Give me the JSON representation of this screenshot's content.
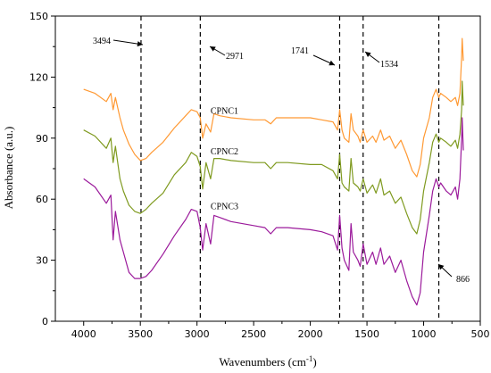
{
  "chart_data": {
    "type": "line",
    "title": "",
    "xlabel": "Wavenumbers (cm",
    "xlabel_sup": "-1",
    "xlabel_close": ")",
    "ylabel": "Absorbance (a.u.)",
    "xlim": [
      4250,
      500
    ],
    "ylim": [
      0,
      150
    ],
    "x_ticks": [
      4000,
      3500,
      3000,
      2500,
      2000,
      1500,
      1000,
      500
    ],
    "y_ticks": [
      0,
      30,
      60,
      90,
      120,
      150
    ],
    "grid": false,
    "legend": "none",
    "reference_lines": [
      3494,
      2971,
      1741,
      1534,
      866
    ],
    "annotations": [
      {
        "text": "3494",
        "x": 3494
      },
      {
        "text": "2971",
        "x": 2971
      },
      {
        "text": "1741",
        "x": 1741
      },
      {
        "text": "1534",
        "x": 1534
      },
      {
        "text": "866",
        "x": 866
      }
    ],
    "series": [
      {
        "name": "CPNC1",
        "color": "#ff9933",
        "label_at": [
          2880,
          102
        ],
        "points": [
          [
            4000,
            114
          ],
          [
            3900,
            112
          ],
          [
            3800,
            108
          ],
          [
            3760,
            112
          ],
          [
            3740,
            104
          ],
          [
            3720,
            110
          ],
          [
            3680,
            100
          ],
          [
            3650,
            94
          ],
          [
            3600,
            87
          ],
          [
            3550,
            82
          ],
          [
            3500,
            79
          ],
          [
            3450,
            80
          ],
          [
            3400,
            83
          ],
          [
            3300,
            88
          ],
          [
            3200,
            95
          ],
          [
            3100,
            101
          ],
          [
            3050,
            104
          ],
          [
            3000,
            103
          ],
          [
            2971,
            100
          ],
          [
            2950,
            90
          ],
          [
            2920,
            97
          ],
          [
            2880,
            93
          ],
          [
            2850,
            102
          ],
          [
            2800,
            101
          ],
          [
            2700,
            100
          ],
          [
            2500,
            99
          ],
          [
            2400,
            99
          ],
          [
            2350,
            97
          ],
          [
            2300,
            100
          ],
          [
            2200,
            100
          ],
          [
            2000,
            100
          ],
          [
            1900,
            99
          ],
          [
            1800,
            98
          ],
          [
            1760,
            94
          ],
          [
            1741,
            104
          ],
          [
            1720,
            94
          ],
          [
            1700,
            90
          ],
          [
            1660,
            88
          ],
          [
            1641,
            102
          ],
          [
            1620,
            94
          ],
          [
            1580,
            91
          ],
          [
            1560,
            88
          ],
          [
            1534,
            94
          ],
          [
            1500,
            88
          ],
          [
            1450,
            91
          ],
          [
            1420,
            88
          ],
          [
            1380,
            94
          ],
          [
            1350,
            89
          ],
          [
            1300,
            91
          ],
          [
            1250,
            85
          ],
          [
            1200,
            89
          ],
          [
            1150,
            82
          ],
          [
            1100,
            74
          ],
          [
            1060,
            71
          ],
          [
            1030,
            77
          ],
          [
            1000,
            90
          ],
          [
            950,
            100
          ],
          [
            920,
            110
          ],
          [
            890,
            114
          ],
          [
            866,
            110
          ],
          [
            850,
            112
          ],
          [
            800,
            110
          ],
          [
            760,
            108
          ],
          [
            720,
            110
          ],
          [
            700,
            106
          ],
          [
            680,
            112
          ],
          [
            665,
            130
          ],
          [
            660,
            139
          ],
          [
            650,
            128
          ]
        ]
      },
      {
        "name": "CPNC2",
        "color": "#7f9a1f",
        "label_at": [
          2880,
          82
        ],
        "points": [
          [
            4000,
            94
          ],
          [
            3900,
            91
          ],
          [
            3800,
            85
          ],
          [
            3760,
            90
          ],
          [
            3740,
            78
          ],
          [
            3720,
            86
          ],
          [
            3680,
            70
          ],
          [
            3650,
            64
          ],
          [
            3600,
            57
          ],
          [
            3550,
            54
          ],
          [
            3500,
            53
          ],
          [
            3450,
            55
          ],
          [
            3400,
            58
          ],
          [
            3300,
            63
          ],
          [
            3200,
            72
          ],
          [
            3100,
            78
          ],
          [
            3050,
            83
          ],
          [
            3000,
            81
          ],
          [
            2971,
            76
          ],
          [
            2950,
            65
          ],
          [
            2920,
            78
          ],
          [
            2880,
            70
          ],
          [
            2850,
            80
          ],
          [
            2800,
            80
          ],
          [
            2700,
            79
          ],
          [
            2500,
            78
          ],
          [
            2400,
            78
          ],
          [
            2350,
            75
          ],
          [
            2300,
            78
          ],
          [
            2200,
            78
          ],
          [
            2000,
            77
          ],
          [
            1900,
            77
          ],
          [
            1800,
            74
          ],
          [
            1760,
            70
          ],
          [
            1741,
            82
          ],
          [
            1720,
            68
          ],
          [
            1700,
            66
          ],
          [
            1660,
            64
          ],
          [
            1641,
            80
          ],
          [
            1620,
            68
          ],
          [
            1580,
            66
          ],
          [
            1560,
            64
          ],
          [
            1534,
            70
          ],
          [
            1500,
            63
          ],
          [
            1450,
            67
          ],
          [
            1420,
            63
          ],
          [
            1380,
            70
          ],
          [
            1350,
            62
          ],
          [
            1300,
            64
          ],
          [
            1250,
            58
          ],
          [
            1200,
            61
          ],
          [
            1150,
            53
          ],
          [
            1100,
            46
          ],
          [
            1060,
            43
          ],
          [
            1030,
            50
          ],
          [
            1000,
            64
          ],
          [
            950,
            78
          ],
          [
            920,
            88
          ],
          [
            890,
            92
          ],
          [
            866,
            88
          ],
          [
            850,
            90
          ],
          [
            800,
            88
          ],
          [
            760,
            86
          ],
          [
            720,
            89
          ],
          [
            700,
            85
          ],
          [
            680,
            92
          ],
          [
            665,
            104
          ],
          [
            660,
            118
          ],
          [
            650,
            106
          ]
        ]
      },
      {
        "name": "CPNC3",
        "color": "#9b1a9b",
        "label_at": [
          2880,
          55
        ],
        "points": [
          [
            4000,
            70
          ],
          [
            3900,
            66
          ],
          [
            3800,
            58
          ],
          [
            3760,
            62
          ],
          [
            3740,
            40
          ],
          [
            3720,
            54
          ],
          [
            3680,
            40
          ],
          [
            3650,
            34
          ],
          [
            3600,
            24
          ],
          [
            3550,
            21
          ],
          [
            3500,
            21
          ],
          [
            3450,
            22
          ],
          [
            3400,
            25
          ],
          [
            3300,
            33
          ],
          [
            3200,
            42
          ],
          [
            3100,
            50
          ],
          [
            3050,
            55
          ],
          [
            3000,
            54
          ],
          [
            2971,
            46
          ],
          [
            2950,
            35
          ],
          [
            2920,
            48
          ],
          [
            2880,
            38
          ],
          [
            2850,
            52
          ],
          [
            2800,
            51
          ],
          [
            2700,
            49
          ],
          [
            2500,
            47
          ],
          [
            2400,
            46
          ],
          [
            2350,
            43
          ],
          [
            2300,
            46
          ],
          [
            2200,
            46
          ],
          [
            2000,
            45
          ],
          [
            1900,
            44
          ],
          [
            1800,
            42
          ],
          [
            1760,
            35
          ],
          [
            1741,
            52
          ],
          [
            1720,
            36
          ],
          [
            1700,
            30
          ],
          [
            1660,
            25
          ],
          [
            1641,
            48
          ],
          [
            1620,
            34
          ],
          [
            1580,
            30
          ],
          [
            1560,
            27
          ],
          [
            1534,
            38
          ],
          [
            1500,
            28
          ],
          [
            1450,
            34
          ],
          [
            1420,
            28
          ],
          [
            1380,
            36
          ],
          [
            1350,
            28
          ],
          [
            1300,
            32
          ],
          [
            1250,
            24
          ],
          [
            1200,
            30
          ],
          [
            1150,
            20
          ],
          [
            1100,
            12
          ],
          [
            1060,
            8
          ],
          [
            1030,
            14
          ],
          [
            1000,
            34
          ],
          [
            950,
            52
          ],
          [
            920,
            64
          ],
          [
            890,
            70
          ],
          [
            866,
            66
          ],
          [
            850,
            68
          ],
          [
            800,
            64
          ],
          [
            760,
            62
          ],
          [
            720,
            66
          ],
          [
            700,
            60
          ],
          [
            680,
            70
          ],
          [
            665,
            90
          ],
          [
            660,
            100
          ],
          [
            650,
            84
          ]
        ]
      }
    ]
  }
}
